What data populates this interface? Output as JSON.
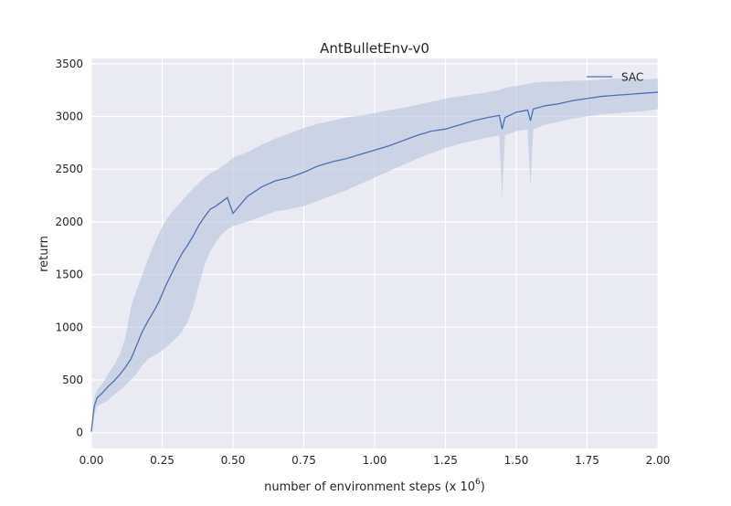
{
  "chart_data": {
    "type": "line",
    "title": "AntBulletEnv-v0",
    "xlabel": "number of environment steps (x 10",
    "xlabel_superscript": "6",
    "xlabel_suffix": ")",
    "ylabel": "return",
    "xlim": [
      0,
      2
    ],
    "ylim": [
      -150,
      3550
    ],
    "x_ticks": [
      0,
      0.25,
      0.5,
      0.75,
      1.0,
      1.25,
      1.5,
      1.75,
      2.0
    ],
    "x_tick_labels": [
      "0.00",
      "0.25",
      "0.50",
      "0.75",
      "1.00",
      "1.25",
      "1.50",
      "1.75",
      "2.00"
    ],
    "y_ticks": [
      0,
      500,
      1000,
      1500,
      2000,
      2500,
      3000,
      3500
    ],
    "y_tick_labels": [
      "0",
      "500",
      "1000",
      "1500",
      "2000",
      "2500",
      "3000",
      "3500"
    ],
    "grid": true,
    "legend_position": "top-right",
    "colors": {
      "background": "#eaeaf2",
      "grid": "#ffffff",
      "line": "#4c72b0",
      "band": "#b0bfd9"
    },
    "series": [
      {
        "name": "SAC",
        "x": [
          0,
          0.01,
          0.02,
          0.04,
          0.06,
          0.08,
          0.1,
          0.12,
          0.14,
          0.16,
          0.18,
          0.2,
          0.22,
          0.24,
          0.26,
          0.28,
          0.3,
          0.32,
          0.34,
          0.36,
          0.38,
          0.4,
          0.42,
          0.44,
          0.46,
          0.48,
          0.5,
          0.55,
          0.6,
          0.65,
          0.7,
          0.75,
          0.8,
          0.85,
          0.9,
          0.95,
          1.0,
          1.05,
          1.1,
          1.15,
          1.2,
          1.25,
          1.3,
          1.35,
          1.4,
          1.44,
          1.45,
          1.46,
          1.5,
          1.54,
          1.55,
          1.56,
          1.6,
          1.65,
          1.7,
          1.75,
          1.8,
          1.85,
          1.9,
          1.95,
          2.0
        ],
        "y": [
          10,
          250,
          330,
          380,
          440,
          490,
          550,
          620,
          700,
          830,
          960,
          1060,
          1150,
          1250,
          1380,
          1490,
          1600,
          1700,
          1780,
          1870,
          1970,
          2050,
          2120,
          2150,
          2190,
          2230,
          2080,
          2240,
          2330,
          2390,
          2420,
          2470,
          2530,
          2570,
          2600,
          2640,
          2680,
          2720,
          2770,
          2820,
          2860,
          2880,
          2920,
          2960,
          2990,
          3010,
          2880,
          2990,
          3040,
          3060,
          2960,
          3070,
          3100,
          3120,
          3150,
          3170,
          3190,
          3200,
          3210,
          3220,
          3230
        ],
        "lower": [
          0,
          170,
          250,
          280,
          310,
          360,
          400,
          450,
          500,
          560,
          640,
          700,
          730,
          760,
          800,
          850,
          900,
          960,
          1050,
          1200,
          1400,
          1600,
          1720,
          1810,
          1880,
          1930,
          1960,
          2000,
          2050,
          2100,
          2120,
          2150,
          2200,
          2250,
          2300,
          2360,
          2420,
          2480,
          2540,
          2600,
          2650,
          2700,
          2740,
          2770,
          2800,
          2820,
          2230,
          2820,
          2860,
          2880,
          2330,
          2880,
          2920,
          2950,
          2980,
          3000,
          3020,
          3030,
          3040,
          3050,
          3070
        ],
        "upper": [
          10,
          330,
          400,
          470,
          560,
          640,
          740,
          900,
          1200,
          1350,
          1500,
          1650,
          1780,
          1900,
          2000,
          2080,
          2140,
          2200,
          2260,
          2320,
          2370,
          2420,
          2460,
          2490,
          2520,
          2560,
          2610,
          2660,
          2730,
          2790,
          2840,
          2890,
          2930,
          2960,
          2990,
          3010,
          3030,
          3060,
          3080,
          3110,
          3140,
          3170,
          3190,
          3210,
          3230,
          3250,
          3260,
          3270,
          3290,
          3310,
          3310,
          3320,
          3330,
          3330,
          3340,
          3340,
          3350,
          3360,
          3360,
          3350,
          3360
        ]
      }
    ]
  }
}
